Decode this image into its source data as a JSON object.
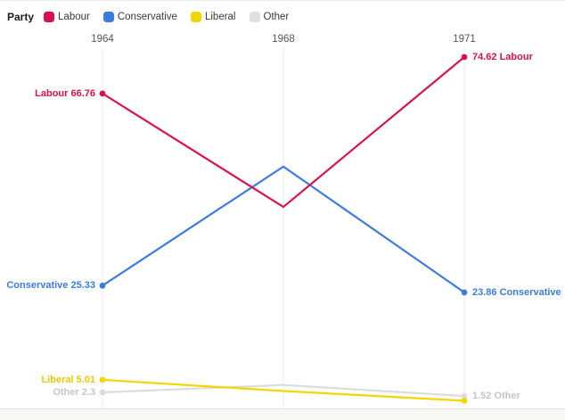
{
  "legend": {
    "title": "Party",
    "items": [
      {
        "label": "Labour",
        "color": "#d8124d"
      },
      {
        "label": "Conservative",
        "color": "#3d7cd8"
      },
      {
        "label": "Liberal",
        "color": "#f2d600"
      },
      {
        "label": "Other",
        "color": "#e0e0e0"
      }
    ]
  },
  "chart_data": {
    "type": "line",
    "x": [
      "1964",
      "1968",
      "1971"
    ],
    "x_axis_position": "top",
    "grid": "vertical-gridlines-per-year",
    "legend_position": "top-left",
    "markers": "endpoints-only",
    "ylim": [
      0,
      77
    ],
    "series": [
      {
        "name": "Labour",
        "color": "#d8124d",
        "label_color": "#d8124d",
        "values": [
          66.76,
          42.3,
          74.62
        ],
        "start_label": "Labour 66.76",
        "end_label": "74.62 Labour"
      },
      {
        "name": "Conservative",
        "color": "#3d7cd8",
        "label_color": "#3d7cd8",
        "values": [
          25.33,
          51.0,
          23.86
        ],
        "start_label": "Conservative 25.33",
        "end_label": "23.86 Conservative"
      },
      {
        "name": "Liberal",
        "color": "#f2d600",
        "label_color": "#e9c900",
        "values": [
          5.01,
          2.6,
          0.5
        ],
        "start_label": "Liberal 5.01",
        "end_label": ""
      },
      {
        "name": "Other",
        "color": "#dcdcdc",
        "label_color": "#c6c6c6",
        "values": [
          2.3,
          3.9,
          1.52
        ],
        "start_label": "Other 2.3",
        "end_label": "1.52 Other"
      }
    ]
  }
}
